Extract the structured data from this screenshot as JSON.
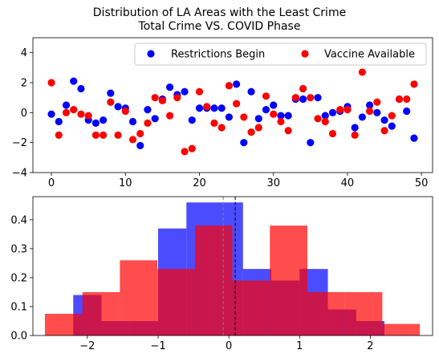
{
  "chart_data": [
    {
      "type": "scatter",
      "title": "Distribution of LA Areas with the Least Crime",
      "subtitle": "Total Crime VS. COVID Phase",
      "xlabel": "",
      "ylabel": "",
      "xlim": [
        -2.5,
        51.5
      ],
      "ylim": [
        -4,
        5
      ],
      "xticks": [
        0,
        10,
        20,
        30,
        40,
        50
      ],
      "yticks": [
        -4,
        -2,
        0,
        2,
        4
      ],
      "grid": false,
      "legend": "top-right",
      "series": [
        {
          "name": "Restrictions Begin",
          "color": "#0000ff",
          "x": [
            0,
            1,
            2,
            3,
            4,
            5,
            6,
            7,
            8,
            9,
            10,
            11,
            12,
            13,
            14,
            15,
            16,
            17,
            18,
            19,
            20,
            21,
            22,
            23,
            24,
            25,
            26,
            27,
            28,
            29,
            30,
            31,
            32,
            33,
            34,
            35,
            36,
            37,
            38,
            39,
            40,
            41,
            42,
            43,
            44,
            45,
            46,
            47,
            48,
            49
          ],
          "y": [
            -0.1,
            -0.6,
            0.5,
            2.1,
            1.6,
            -0.5,
            -0.7,
            -0.5,
            1.3,
            0.4,
            0.3,
            -0.6,
            -2.2,
            0.2,
            -0.4,
            0.9,
            1.7,
            1.2,
            1.4,
            -0.5,
            0.3,
            0.3,
            0.3,
            0.3,
            -0.3,
            1.9,
            -2.0,
            1.4,
            -0.4,
            0.2,
            0.5,
            -0.2,
            -0.2,
            0.9,
            0.9,
            -2.0,
            1.0,
            -0.2,
            0.0,
            0.1,
            0.4,
            -1.0,
            -0.3,
            0.5,
            0.0,
            -0.5,
            -0.9,
            0.9,
            0.1,
            -1.7
          ]
        },
        {
          "name": "Vaccine Available",
          "color": "#ff0000",
          "x": [
            0,
            1,
            2,
            3,
            4,
            5,
            6,
            7,
            8,
            9,
            10,
            11,
            12,
            13,
            14,
            15,
            16,
            17,
            18,
            19,
            20,
            21,
            22,
            23,
            24,
            25,
            26,
            27,
            28,
            29,
            30,
            31,
            32,
            33,
            34,
            35,
            36,
            37,
            38,
            39,
            40,
            41,
            42,
            43,
            44,
            45,
            46,
            47,
            48,
            49
          ],
          "y": [
            2.0,
            -1.5,
            0.0,
            0.2,
            -0.1,
            -0.2,
            -1.5,
            -1.5,
            0.7,
            -1.5,
            0.1,
            -1.8,
            -1.4,
            -0.7,
            1.0,
            0.8,
            -0.2,
            1.0,
            -2.6,
            -2.4,
            1.4,
            0.4,
            -0.7,
            -1.0,
            1.8,
            0.6,
            -0.3,
            -1.3,
            -1.0,
            1.1,
            -0.1,
            -0.6,
            -1.2,
            1.0,
            1.6,
            1.0,
            -0.4,
            -0.6,
            -1.4,
            0.2,
            0.2,
            -1.5,
            2.7,
            0.1,
            0.7,
            -1.2,
            -0.2,
            0.9,
            0.9,
            1.9
          ]
        }
      ]
    },
    {
      "type": "histogram",
      "title": "",
      "xlabel": "",
      "ylabel": "",
      "xlim": [
        -2.77,
        2.88
      ],
      "ylim": [
        0,
        0.48
      ],
      "xticks": [
        -2,
        -1,
        0,
        1,
        2
      ],
      "yticks": [
        0.0,
        0.1,
        0.2,
        0.3,
        0.4
      ],
      "grid": false,
      "series": [
        {
          "name": "Restrictions Begin",
          "color": "#0000ff",
          "opacity": 0.7,
          "bin_edges": [
            -2.2,
            -1.8,
            -1.4,
            -1.0,
            -0.6,
            -0.2,
            0.2,
            0.6,
            1.0,
            1.4,
            1.8,
            2.2
          ],
          "density": [
            0.14,
            0.05,
            0.05,
            0.37,
            0.46,
            0.46,
            0.23,
            0.19,
            0.23,
            0.09,
            0.05
          ],
          "mean": 0.09
        },
        {
          "name": "Vaccine Available",
          "color": "#ff0000",
          "opacity": 0.7,
          "bin_edges": [
            -2.6,
            -2.07,
            -1.54,
            -1.01,
            -0.48,
            0.05,
            0.58,
            1.11,
            1.64,
            2.17,
            2.7
          ],
          "density": [
            0.075,
            0.15,
            0.26,
            0.23,
            0.38,
            0.19,
            0.38,
            0.15,
            0.15,
            0.04
          ],
          "mean": -0.08
        }
      ],
      "mean_lines": [
        {
          "value": 0.09,
          "color": "#000000",
          "style": "dashed"
        },
        {
          "value": -0.08,
          "color": "#808080",
          "style": "dashed"
        }
      ]
    }
  ]
}
